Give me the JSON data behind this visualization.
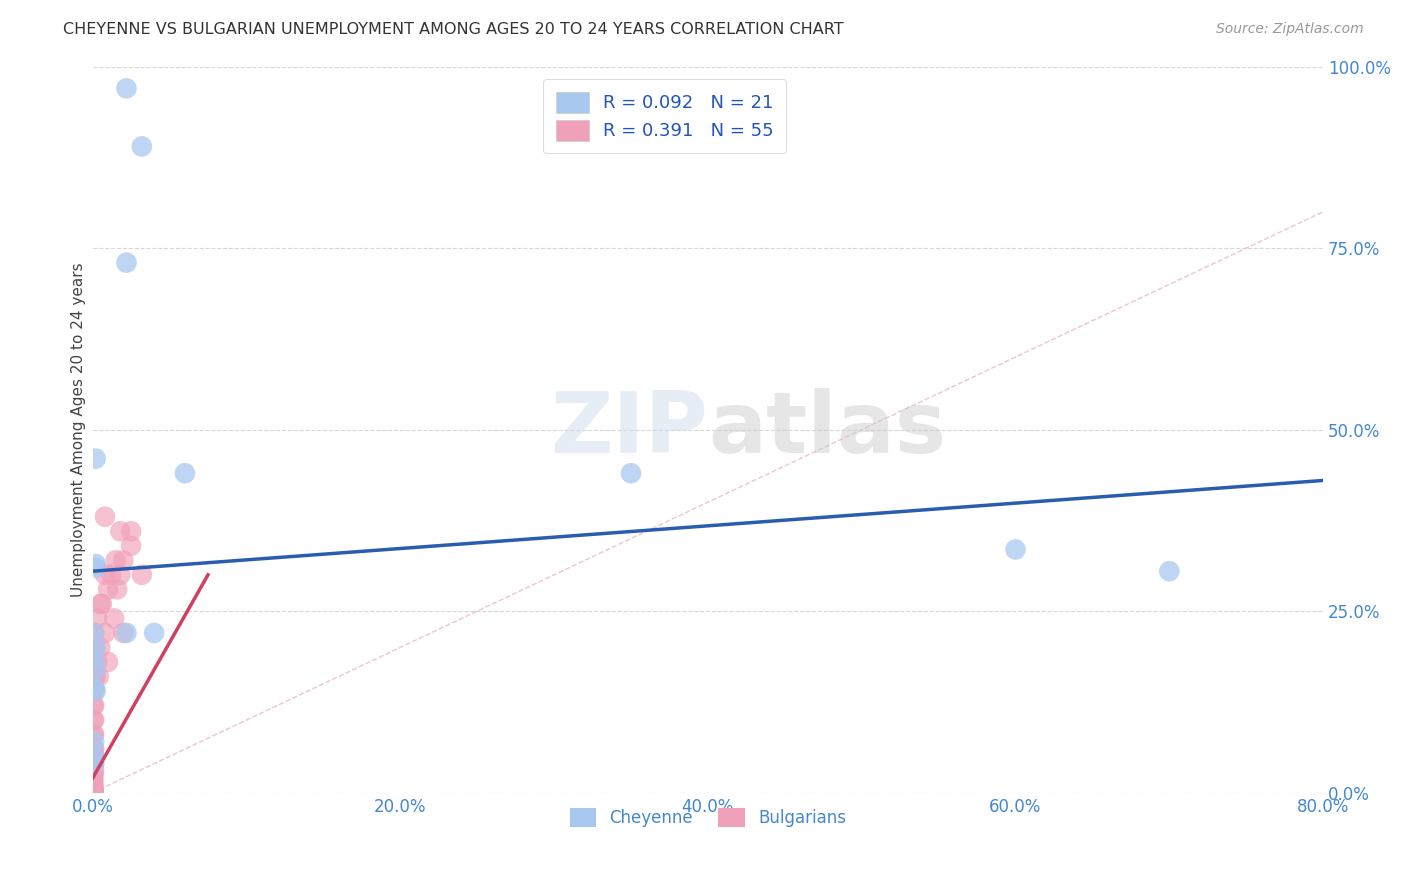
{
  "title": "CHEYENNE VS BULGARIAN UNEMPLOYMENT AMONG AGES 20 TO 24 YEARS CORRELATION CHART",
  "source": "Source: ZipAtlas.com",
  "ylabel": "Unemployment Among Ages 20 to 24 years",
  "xlim": [
    0.0,
    0.8
  ],
  "ylim": [
    0.0,
    1.0
  ],
  "xticks": [
    0.0,
    0.2,
    0.4,
    0.6,
    0.8
  ],
  "yticks": [
    0.0,
    0.25,
    0.5,
    0.75,
    1.0
  ],
  "xtick_labels": [
    "0.0%",
    "20.0%",
    "40.0%",
    "60.0%",
    "80.0%"
  ],
  "ytick_labels": [
    "0.0%",
    "25.0%",
    "50.0%",
    "75.0%",
    "100.0%"
  ],
  "watermark": "ZIPatlas",
  "legend_r1": "R = 0.092",
  "legend_n1": "N = 21",
  "legend_r2": "R = 0.391",
  "legend_n2": "N = 55",
  "cheyenne_color": "#a8c8f0",
  "bulgarian_color": "#f0a0b8",
  "cheyenne_line_color": "#2a5db0",
  "bulgarian_line_color": "#d04060",
  "diagonal_color": "#e8b0b8",
  "cheyenne_x": [
    0.022,
    0.032,
    0.022,
    0.002,
    0.002,
    0.35,
    0.002,
    0.06,
    0.6,
    0.7,
    0.022,
    0.04,
    0.002,
    0.002,
    0.002,
    0.001,
    0.001,
    0.001,
    0.001,
    0.001,
    0.001
  ],
  "cheyenne_y": [
    0.97,
    0.89,
    0.73,
    0.46,
    0.31,
    0.44,
    0.315,
    0.44,
    0.335,
    0.305,
    0.22,
    0.22,
    0.17,
    0.2,
    0.14,
    0.22,
    0.185,
    0.145,
    0.07,
    0.04,
    0.05
  ],
  "bulgarian_x": [
    0.018,
    0.025,
    0.032,
    0.015,
    0.012,
    0.008,
    0.016,
    0.006,
    0.014,
    0.02,
    0.008,
    0.025,
    0.02,
    0.018,
    0.01,
    0.005,
    0.003,
    0.008,
    0.01,
    0.004,
    0.005,
    0.003,
    0.002,
    0.001,
    0.001,
    0.001,
    0.001,
    0.001,
    0.001,
    0.001,
    0.001,
    0.001,
    0.001,
    0.001,
    0.001,
    0.0005,
    0.0005,
    0.0005,
    0.0005,
    0.0005,
    0.0005,
    0.0005,
    0.0005,
    0.0005,
    0.0005,
    0.0005,
    0.0005,
    0.0005,
    0.0005,
    0.0005,
    0.0005,
    0.0005,
    0.0005,
    0.0005,
    0.0005
  ],
  "bulgarian_y": [
    0.36,
    0.34,
    0.3,
    0.32,
    0.3,
    0.3,
    0.28,
    0.26,
    0.24,
    0.22,
    0.38,
    0.36,
    0.32,
    0.3,
    0.28,
    0.26,
    0.24,
    0.22,
    0.18,
    0.16,
    0.2,
    0.18,
    0.16,
    0.22,
    0.2,
    0.18,
    0.16,
    0.14,
    0.12,
    0.1,
    0.08,
    0.06,
    0.05,
    0.04,
    0.03,
    0.12,
    0.1,
    0.08,
    0.06,
    0.05,
    0.04,
    0.03,
    0.025,
    0.02,
    0.015,
    0.01,
    0.008,
    0.005,
    0.003,
    0.002,
    0.001,
    0.0,
    0.0,
    0.0,
    0.0
  ],
  "chey_line_x0": 0.0,
  "chey_line_x1": 0.8,
  "chey_line_y0": 0.305,
  "chey_line_y1": 0.43,
  "bulg_line_x0": 0.0,
  "bulg_line_x1": 0.075,
  "bulg_line_y0": 0.02,
  "bulg_line_y1": 0.3
}
